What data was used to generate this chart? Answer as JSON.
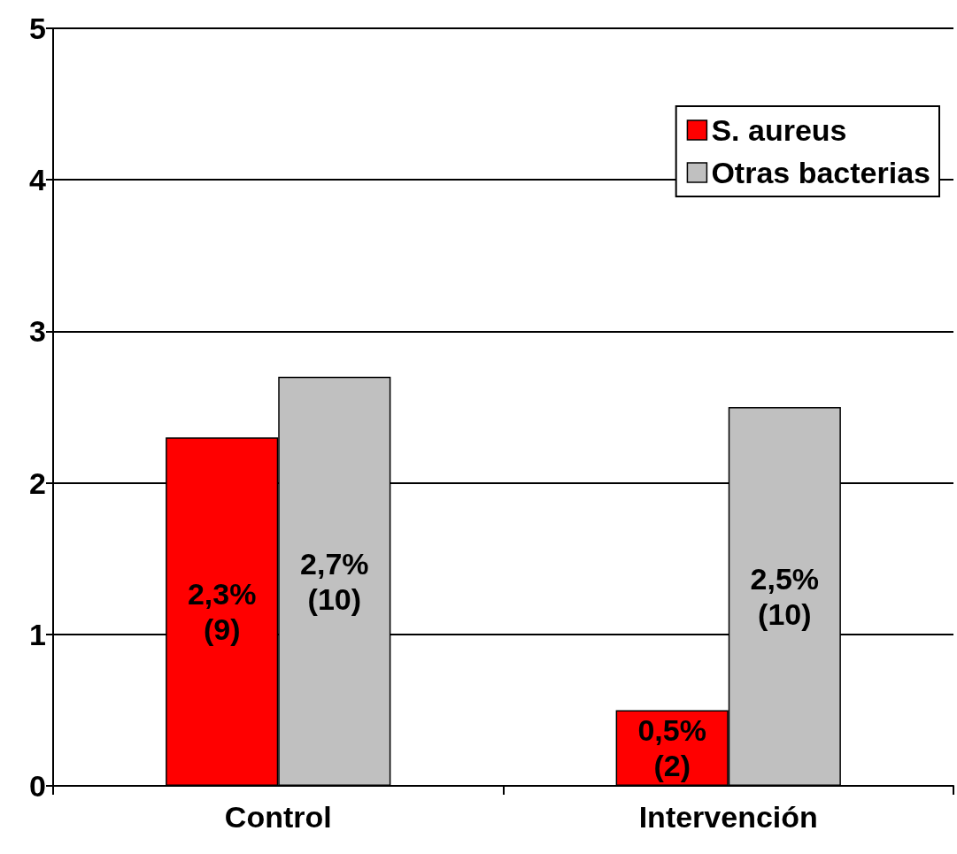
{
  "chart_data": {
    "type": "bar",
    "categories": [
      "Control",
      "Intervención"
    ],
    "series": [
      {
        "name": "S. aureus",
        "color": "#ff0000",
        "values": [
          2.3,
          0.5
        ],
        "value_labels": [
          "2,3% (9)",
          "0,5% (2)"
        ]
      },
      {
        "name": "Otras bacterias",
        "color": "#c0c0c0",
        "values": [
          2.7,
          2.5
        ],
        "value_labels": [
          "2,7% (10)",
          "2,5% (10)"
        ]
      }
    ],
    "ylim": [
      0,
      5
    ],
    "yticks": [
      0,
      1,
      2,
      3,
      4,
      5
    ],
    "grid": "y",
    "legend": "top right"
  }
}
